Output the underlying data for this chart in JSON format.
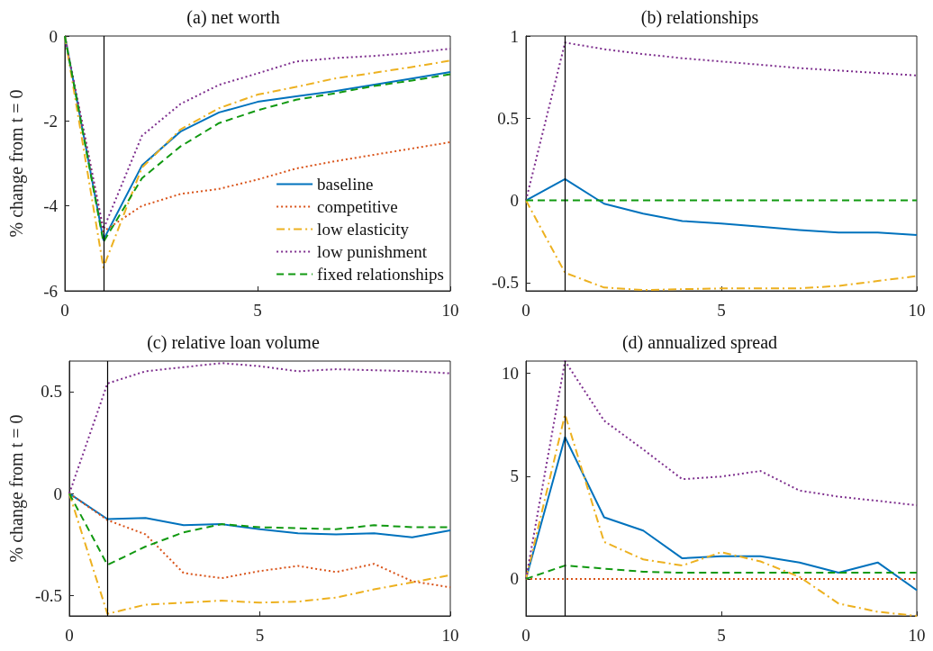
{
  "chart_data": [
    {
      "type": "line",
      "title": "(a) net worth",
      "ylabel": "% change from t = 0",
      "x": [
        0,
        1,
        2,
        3,
        4,
        5,
        6,
        7,
        8,
        9,
        10
      ],
      "xlim": [
        0,
        10
      ],
      "xticks": [
        0,
        5,
        10
      ],
      "ylim": [
        -6,
        0
      ],
      "yticks": [
        -6,
        -4,
        -2,
        0
      ],
      "grid": false,
      "legend": "bottom right",
      "marker": "none",
      "ref_lines": [
        {
          "axis": "x",
          "value": 1,
          "color": "#000000"
        }
      ],
      "series": [
        {
          "name": "baseline",
          "color": "#0072bd",
          "line_style": "solid",
          "values": [
            0,
            -4.8,
            -3.05,
            -2.25,
            -1.8,
            -1.55,
            -1.42,
            -1.3,
            -1.15,
            -1.0,
            -0.85
          ]
        },
        {
          "name": "competitive",
          "color": "#d95319",
          "line_style": "dotted",
          "values": [
            0,
            -4.6,
            -4.0,
            -3.72,
            -3.6,
            -3.38,
            -3.12,
            -2.95,
            -2.8,
            -2.65,
            -2.5
          ]
        },
        {
          "name": "low elasticity",
          "color": "#edb120",
          "line_style": "dashdot",
          "values": [
            0,
            -5.45,
            -3.1,
            -2.2,
            -1.7,
            -1.38,
            -1.2,
            -1.0,
            -0.87,
            -0.73,
            -0.58
          ]
        },
        {
          "name": "low punishment",
          "color": "#7e2f8e",
          "line_style": "dotted",
          "values": [
            0,
            -4.55,
            -2.35,
            -1.6,
            -1.15,
            -0.88,
            -0.6,
            -0.52,
            -0.47,
            -0.4,
            -0.3
          ]
        },
        {
          "name": "fixed relationships",
          "color": "#119911",
          "line_style": "dashed",
          "values": [
            0,
            -4.85,
            -3.35,
            -2.6,
            -2.05,
            -1.75,
            -1.5,
            -1.35,
            -1.18,
            -1.05,
            -0.9
          ]
        }
      ]
    },
    {
      "type": "line",
      "title": "(b) relationships",
      "x": [
        0,
        1,
        2,
        3,
        4,
        5,
        6,
        7,
        8,
        9,
        10
      ],
      "xlim": [
        0,
        10
      ],
      "xticks": [
        0,
        5,
        10
      ],
      "ylim": [
        -0.55,
        1
      ],
      "yticks": [
        -0.5,
        0,
        0.5,
        1
      ],
      "grid": false,
      "marker": "none",
      "ref_lines": [
        {
          "axis": "x",
          "value": 1,
          "color": "#000000"
        }
      ],
      "series": [
        {
          "color": "#0072bd",
          "line_style": "solid",
          "values": [
            0,
            0.13,
            -0.02,
            -0.08,
            -0.125,
            -0.14,
            -0.16,
            -0.18,
            -0.195,
            -0.195,
            -0.21
          ]
        },
        {
          "color": "#edb120",
          "line_style": "dashdot",
          "values": [
            0,
            -0.44,
            -0.53,
            -0.545,
            -0.54,
            -0.535,
            -0.535,
            -0.535,
            -0.52,
            -0.49,
            -0.46
          ]
        },
        {
          "color": "#7e2f8e",
          "line_style": "dotted",
          "values": [
            0,
            0.96,
            0.92,
            0.89,
            0.865,
            0.845,
            0.825,
            0.805,
            0.79,
            0.775,
            0.76
          ]
        },
        {
          "color": "#119911",
          "line_style": "dashed",
          "values": [
            0,
            0,
            0,
            0,
            0,
            0,
            0,
            0,
            0,
            0,
            0
          ]
        }
      ]
    },
    {
      "type": "line",
      "title": "(c) relative loan volume",
      "ylabel": "% change from t = 0",
      "x": [
        0,
        1,
        2,
        3,
        4,
        5,
        6,
        7,
        8,
        9,
        10
      ],
      "xlim": [
        0,
        10
      ],
      "xticks": [
        0,
        5,
        10
      ],
      "ylim": [
        -0.6,
        0.65
      ],
      "yticks": [
        -0.5,
        0,
        0.5
      ],
      "grid": false,
      "marker": "none",
      "ref_lines": [
        {
          "axis": "x",
          "value": 1,
          "color": "#000000"
        }
      ],
      "series": [
        {
          "color": "#0072bd",
          "line_style": "solid",
          "values": [
            0,
            -0.125,
            -0.12,
            -0.155,
            -0.15,
            -0.175,
            -0.195,
            -0.2,
            -0.195,
            -0.215,
            -0.18
          ]
        },
        {
          "color": "#d95319",
          "line_style": "dotted",
          "values": [
            0,
            -0.13,
            -0.2,
            -0.39,
            -0.415,
            -0.38,
            -0.355,
            -0.385,
            -0.345,
            -0.43,
            -0.46
          ]
        },
        {
          "color": "#edb120",
          "line_style": "dashdot",
          "values": [
            0,
            -0.59,
            -0.545,
            -0.535,
            -0.525,
            -0.535,
            -0.53,
            -0.51,
            -0.47,
            -0.435,
            -0.4
          ]
        },
        {
          "color": "#7e2f8e",
          "line_style": "dotted",
          "values": [
            0,
            0.54,
            0.6,
            0.62,
            0.64,
            0.625,
            0.6,
            0.61,
            0.605,
            0.6,
            0.59
          ]
        },
        {
          "color": "#119911",
          "line_style": "dashed",
          "values": [
            0,
            -0.35,
            -0.26,
            -0.19,
            -0.15,
            -0.165,
            -0.17,
            -0.175,
            -0.155,
            -0.165,
            -0.165
          ]
        }
      ]
    },
    {
      "type": "line",
      "title": "(d) annualized spread",
      "x": [
        0,
        1,
        2,
        3,
        4,
        5,
        6,
        7,
        8,
        9,
        10
      ],
      "xlim": [
        0,
        10
      ],
      "xticks": [
        0,
        5,
        10
      ],
      "ylim": [
        -1.8,
        10.6
      ],
      "yticks": [
        0,
        5,
        10
      ],
      "grid": false,
      "marker": "none",
      "ref_lines": [
        {
          "axis": "x",
          "value": 1,
          "color": "#000000"
        }
      ],
      "series": [
        {
          "color": "#0072bd",
          "line_style": "solid",
          "values": [
            0,
            6.9,
            3.0,
            2.35,
            1.0,
            1.1,
            1.1,
            0.8,
            0.3,
            0.8,
            -0.55
          ]
        },
        {
          "color": "#d95319",
          "line_style": "dotted",
          "values": [
            0,
            0,
            0,
            0,
            0,
            0,
            0,
            0,
            0,
            0,
            0
          ]
        },
        {
          "color": "#edb120",
          "line_style": "dashdot",
          "values": [
            0,
            8.0,
            1.8,
            0.95,
            0.65,
            1.3,
            0.85,
            0.1,
            -1.2,
            -1.6,
            -1.8
          ]
        },
        {
          "color": "#7e2f8e",
          "line_style": "dotted",
          "values": [
            0,
            10.6,
            7.7,
            6.3,
            4.85,
            4.98,
            5.25,
            4.3,
            4.0,
            3.8,
            3.58
          ]
        },
        {
          "color": "#119911",
          "line_style": "dashed",
          "values": [
            0,
            0.65,
            0.5,
            0.35,
            0.3,
            0.3,
            0.3,
            0.3,
            0.3,
            0.3,
            0.3
          ]
        }
      ]
    }
  ]
}
